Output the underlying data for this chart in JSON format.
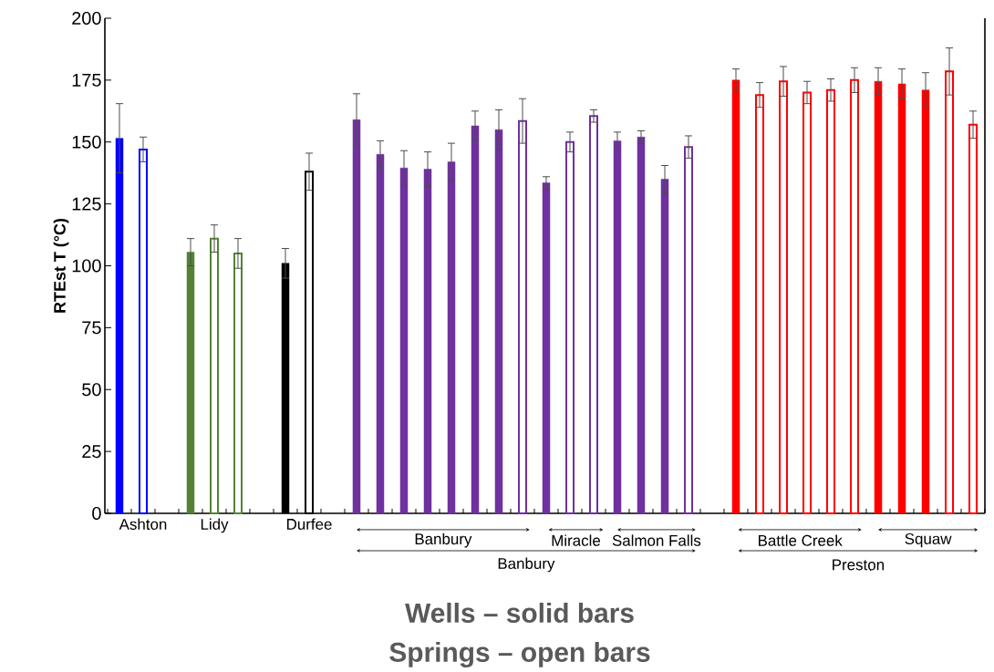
{
  "chart_data": {
    "type": "bar",
    "ylabel": "RTEst T (°C)",
    "categories": [
      null,
      "Ashton",
      null,
      null,
      "Lidy",
      null,
      null,
      null,
      "Durfee",
      null,
      null,
      null,
      null,
      null,
      null,
      null,
      null,
      null,
      null,
      null,
      null,
      null,
      null,
      null,
      null,
      null,
      null,
      null,
      null,
      null,
      null,
      null,
      null,
      null,
      null,
      null,
      null
    ],
    "series": [
      {
        "values": [
          151.5,
          null,
          null,
          105.5,
          null,
          null,
          null,
          101,
          null,
          null,
          159,
          145,
          139.5,
          139,
          142,
          156.5,
          155,
          null,
          133.5,
          null,
          null,
          150.5,
          152,
          135,
          null,
          null,
          175,
          null,
          null,
          null,
          null,
          null,
          174.5,
          173.5,
          171,
          null,
          null
        ],
        "errors": [
          14,
          null,
          null,
          5.5,
          null,
          null,
          null,
          6,
          null,
          null,
          10.5,
          5.5,
          7,
          7,
          7.5,
          6,
          8,
          null,
          2.5,
          null,
          null,
          3.5,
          2.5,
          5.5,
          null,
          null,
          4.5,
          null,
          null,
          null,
          null,
          null,
          5.5,
          6,
          7,
          null,
          null
        ],
        "colors": [
          "#0000ff",
          null,
          null,
          "#548235",
          null,
          null,
          null,
          "#000000",
          null,
          null,
          "#7030a0",
          "#7030a0",
          "#7030a0",
          "#7030a0",
          "#7030a0",
          "#7030a0",
          "#7030a0",
          null,
          "#7030a0",
          null,
          null,
          "#7030a0",
          "#7030a0",
          "#7030a0",
          null,
          null,
          "#ff0000",
          null,
          null,
          null,
          null,
          null,
          "#ff0000",
          "#ff0000",
          "#ff0000",
          null,
          null
        ]
      },
      {
        "values": [
          null,
          147,
          null,
          null,
          111,
          105,
          null,
          null,
          138,
          null,
          null,
          null,
          null,
          null,
          null,
          null,
          null,
          158.5,
          null,
          150,
          160.5,
          null,
          null,
          null,
          148,
          null,
          null,
          169,
          174.5,
          170,
          171,
          175,
          null,
          null,
          null,
          178.5,
          157
        ],
        "errors": [
          null,
          5,
          null,
          null,
          5.5,
          6,
          null,
          null,
          7.5,
          null,
          null,
          null,
          null,
          null,
          null,
          null,
          null,
          9,
          null,
          4,
          2.5,
          null,
          null,
          null,
          4.5,
          null,
          null,
          5,
          6,
          4.5,
          4.5,
          5,
          null,
          null,
          null,
          9.5,
          5.5
        ],
        "colors": [
          null,
          "#0000ff",
          null,
          null,
          "#548235",
          "#548235",
          null,
          null,
          "#000000",
          null,
          null,
          null,
          null,
          null,
          null,
          null,
          null,
          "#7030a0",
          null,
          "#7030a0",
          "#7030a0",
          null,
          null,
          null,
          "#7030a0",
          null,
          null,
          "#ff0000",
          "#ff0000",
          "#ff0000",
          "#ff0000",
          "#ff0000",
          null,
          null,
          null,
          "#ff0000",
          "#ff0000"
        ]
      }
    ],
    "ylim": [
      0,
      200
    ],
    "yticks": [
      0,
      25,
      50,
      75,
      100,
      125,
      150,
      175,
      200
    ],
    "grid": false,
    "annotations": [
      "Banbury",
      "Miracle",
      "Salmon Falls",
      "Battle Creek",
      "Squaw",
      "Banbury",
      "Preston",
      "Wells – solid bars",
      "Springs – open bars"
    ]
  }
}
